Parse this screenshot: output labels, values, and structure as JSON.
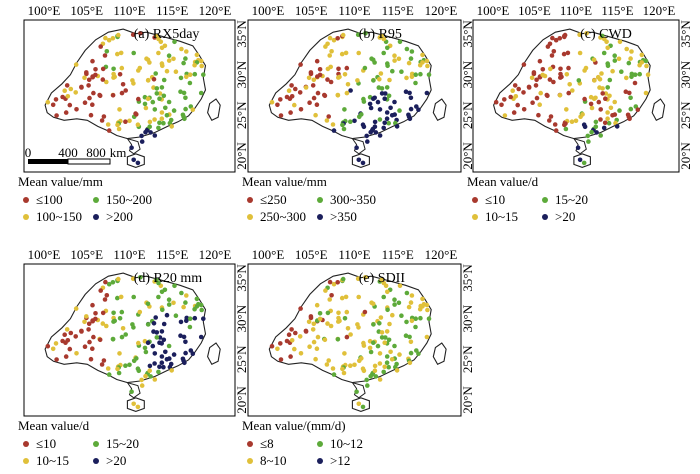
{
  "colors": {
    "class1": "#a8392e",
    "class2": "#e0c03a",
    "class3": "#5daa3a",
    "class4": "#1b1f5c",
    "coast": "#222222",
    "frame": "#000000"
  },
  "lon_ticks": [
    "100°E",
    "105°E",
    "110°E",
    "115°E",
    "120°E"
  ],
  "lat_ticks": [
    "35°N",
    "30°N",
    "25°N",
    "20°N"
  ],
  "scale_bar": {
    "labels": [
      "0",
      "400",
      "800",
      "km"
    ]
  },
  "panels": [
    {
      "id": "a",
      "title": "(a) RX5day",
      "unit_label": "Mean value/mm",
      "legend": [
        "≤100",
        "150~200",
        "100~150",
        ">200"
      ],
      "pattern": "rx5day",
      "show_scale": true
    },
    {
      "id": "b",
      "title": "(b) R95",
      "unit_label": "Mean value/mm",
      "legend": [
        "≤250",
        "300~350",
        "250~300",
        ">350"
      ],
      "pattern": "r95",
      "show_scale": false
    },
    {
      "id": "c",
      "title": "(c) CWD",
      "unit_label": "Mean value/d",
      "legend": [
        "≤10",
        "15~20",
        "10~15",
        ">20"
      ],
      "pattern": "cwd",
      "show_scale": false
    },
    {
      "id": "d",
      "title": "(d) R20  mm",
      "unit_label": "Mean value/d",
      "legend": [
        "≤10",
        "15~20",
        "10~15",
        ">20"
      ],
      "pattern": "r20",
      "show_scale": false
    },
    {
      "id": "e",
      "title": "(e) SDII",
      "unit_label": "Mean value/(mm/d)",
      "legend": [
        "≤8",
        "10~12",
        "8~10",
        ">12"
      ],
      "pattern": "sdii",
      "show_scale": false
    }
  ]
}
